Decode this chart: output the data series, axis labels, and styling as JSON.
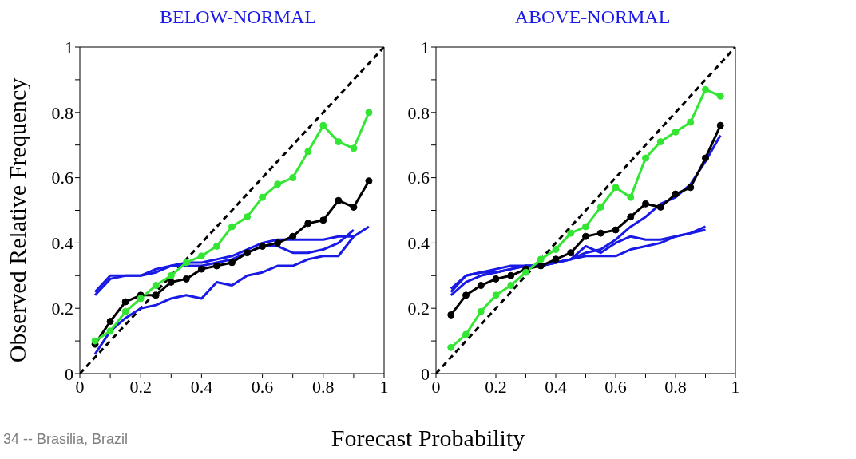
{
  "chart_data": [
    {
      "type": "line",
      "title": "BELOW-NORMAL",
      "ylabel": "Observed Relative Frequency",
      "annotations": [
        "34 -- Brasilia, Brazil"
      ],
      "xlim": [
        0,
        1
      ],
      "ylim": [
        0,
        1
      ],
      "xticks": [
        0,
        {
          "value": 0.1,
          "label": null
        },
        0.2,
        {
          "value": 0.3,
          "label": null
        },
        0.4,
        {
          "value": 0.5,
          "label": null
        },
        0.6,
        {
          "value": 0.7,
          "label": null
        },
        0.8,
        {
          "value": 0.9,
          "label": null
        },
        1
      ],
      "yticks": [
        0,
        {
          "value": 0.1,
          "label": null
        },
        0.2,
        {
          "value": 0.3,
          "label": null
        },
        0.4,
        {
          "value": 0.5,
          "label": null
        },
        0.6,
        {
          "value": 0.7,
          "label": null
        },
        0.8,
        {
          "value": 0.9,
          "label": null
        },
        1
      ],
      "grid": false,
      "series": [
        {
          "color": "#000000",
          "line_style": "dashed",
          "marker": "none",
          "x": [
            0,
            1
          ],
          "values": [
            0,
            1
          ]
        },
        {
          "color": "#1a1ae6",
          "marker": "none",
          "x": [
            0.05,
            0.1,
            0.15,
            0.2,
            0.25,
            0.3,
            0.35,
            0.4,
            0.45,
            0.5,
            0.55,
            0.6,
            0.65,
            0.7,
            0.75,
            0.8,
            0.85,
            0.9
          ],
          "values": [
            0.24,
            0.29,
            0.3,
            0.3,
            0.31,
            0.33,
            0.34,
            0.34,
            0.35,
            0.36,
            0.38,
            0.4,
            0.41,
            0.41,
            0.41,
            0.41,
            0.42,
            0.42
          ]
        },
        {
          "color": "#1a1ae6",
          "marker": "none",
          "x": [
            0.05,
            0.1,
            0.15,
            0.2,
            0.25,
            0.3,
            0.35,
            0.4,
            0.45,
            0.5,
            0.55,
            0.6,
            0.65,
            0.7,
            0.75,
            0.8,
            0.85,
            0.9
          ],
          "values": [
            0.25,
            0.3,
            0.3,
            0.3,
            0.32,
            0.33,
            0.33,
            0.33,
            0.34,
            0.35,
            0.37,
            0.39,
            0.39,
            0.37,
            0.37,
            0.38,
            0.4,
            0.44
          ]
        },
        {
          "color": "#1a1ae6",
          "marker": "none",
          "x": [
            0.05,
            0.1,
            0.15,
            0.2,
            0.25,
            0.3,
            0.35,
            0.4,
            0.45,
            0.5,
            0.55,
            0.6,
            0.65,
            0.7,
            0.75,
            0.8,
            0.85,
            0.9,
            0.95
          ],
          "values": [
            0.06,
            0.13,
            0.17,
            0.2,
            0.21,
            0.23,
            0.24,
            0.23,
            0.28,
            0.27,
            0.3,
            0.31,
            0.33,
            0.33,
            0.35,
            0.36,
            0.36,
            0.42,
            0.45
          ]
        },
        {
          "color": "#000000",
          "marker": "circle",
          "x": [
            0.05,
            0.1,
            0.15,
            0.2,
            0.25,
            0.3,
            0.35,
            0.4,
            0.45,
            0.5,
            0.55,
            0.6,
            0.65,
            0.7,
            0.75,
            0.8,
            0.85,
            0.9,
            0.95
          ],
          "values": [
            0.09,
            0.16,
            0.22,
            0.24,
            0.24,
            0.28,
            0.29,
            0.32,
            0.33,
            0.34,
            0.37,
            0.39,
            0.4,
            0.42,
            0.46,
            0.47,
            0.53,
            0.51,
            0.59
          ]
        },
        {
          "color": "#33e633",
          "marker": "circle",
          "x": [
            0.05,
            0.1,
            0.15,
            0.2,
            0.25,
            0.3,
            0.35,
            0.4,
            0.45,
            0.5,
            0.55,
            0.6,
            0.65,
            0.7,
            0.75,
            0.8,
            0.85,
            0.9,
            0.95
          ],
          "values": [
            0.1,
            0.13,
            0.19,
            0.23,
            0.27,
            0.3,
            0.34,
            0.36,
            0.39,
            0.45,
            0.48,
            0.54,
            0.58,
            0.6,
            0.68,
            0.76,
            0.71,
            0.69,
            0.8
          ]
        }
      ]
    },
    {
      "type": "line",
      "title": "ABOVE-NORMAL",
      "xlabel": "Forecast Probability",
      "xlim": [
        0,
        1
      ],
      "ylim": [
        0,
        1
      ],
      "xticks": [
        0,
        {
          "value": 0.1,
          "label": null
        },
        0.2,
        {
          "value": 0.3,
          "label": null
        },
        0.4,
        {
          "value": 0.5,
          "label": null
        },
        0.6,
        {
          "value": 0.7,
          "label": null
        },
        0.8,
        {
          "value": 0.9,
          "label": null
        },
        1
      ],
      "yticks": [
        0,
        {
          "value": 0.1,
          "label": null
        },
        0.2,
        {
          "value": 0.3,
          "label": null
        },
        0.4,
        {
          "value": 0.5,
          "label": null
        },
        0.6,
        {
          "value": 0.7,
          "label": null
        },
        0.8,
        {
          "value": 0.9,
          "label": null
        },
        1
      ],
      "grid": false,
      "series": [
        {
          "color": "#000000",
          "line_style": "dashed",
          "marker": "none",
          "x": [
            0,
            1
          ],
          "values": [
            0,
            1
          ]
        },
        {
          "color": "#1a1ae6",
          "marker": "none",
          "x": [
            0.05,
            0.1,
            0.15,
            0.2,
            0.25,
            0.3,
            0.35,
            0.4,
            0.45,
            0.5,
            0.55,
            0.6,
            0.65,
            0.7,
            0.75,
            0.8,
            0.85,
            0.9
          ],
          "values": [
            0.25,
            0.3,
            0.31,
            0.32,
            0.33,
            0.33,
            0.33,
            0.34,
            0.35,
            0.39,
            0.37,
            0.4,
            0.42,
            0.41,
            0.41,
            0.42,
            0.43,
            0.45
          ]
        },
        {
          "color": "#1a1ae6",
          "marker": "none",
          "x": [
            0.05,
            0.1,
            0.15,
            0.2,
            0.25,
            0.3,
            0.35,
            0.4,
            0.45,
            0.5,
            0.55,
            0.6,
            0.65,
            0.7,
            0.75,
            0.8,
            0.85,
            0.9
          ],
          "values": [
            0.26,
            0.3,
            0.31,
            0.31,
            0.32,
            0.33,
            0.33,
            0.34,
            0.35,
            0.36,
            0.36,
            0.36,
            0.38,
            0.39,
            0.4,
            0.42,
            0.43,
            0.44
          ]
        },
        {
          "color": "#1a1ae6",
          "marker": "none",
          "x": [
            0.05,
            0.1,
            0.15,
            0.2,
            0.25,
            0.3,
            0.35,
            0.4,
            0.45,
            0.5,
            0.55,
            0.6,
            0.65,
            0.7,
            0.75,
            0.8,
            0.85,
            0.9,
            0.95
          ],
          "values": [
            0.24,
            0.28,
            0.3,
            0.31,
            0.32,
            0.33,
            0.33,
            0.34,
            0.35,
            0.37,
            0.38,
            0.41,
            0.45,
            0.48,
            0.52,
            0.54,
            0.58,
            0.65,
            0.73
          ]
        },
        {
          "color": "#000000",
          "marker": "circle",
          "x": [
            0.05,
            0.1,
            0.15,
            0.2,
            0.25,
            0.3,
            0.35,
            0.4,
            0.45,
            0.5,
            0.55,
            0.6,
            0.65,
            0.7,
            0.75,
            0.8,
            0.85,
            0.9,
            0.95
          ],
          "values": [
            0.18,
            0.24,
            0.27,
            0.29,
            0.3,
            0.32,
            0.33,
            0.35,
            0.37,
            0.42,
            0.43,
            0.44,
            0.48,
            0.52,
            0.51,
            0.55,
            0.57,
            0.66,
            0.76
          ]
        },
        {
          "color": "#33e633",
          "marker": "circle",
          "x": [
            0.05,
            0.1,
            0.15,
            0.2,
            0.25,
            0.3,
            0.35,
            0.4,
            0.45,
            0.5,
            0.55,
            0.6,
            0.65,
            0.7,
            0.75,
            0.8,
            0.85,
            0.9,
            0.95
          ],
          "values": [
            0.08,
            0.12,
            0.19,
            0.24,
            0.27,
            0.31,
            0.35,
            0.38,
            0.43,
            0.45,
            0.51,
            0.57,
            0.54,
            0.66,
            0.71,
            0.74,
            0.77,
            0.87,
            0.85
          ]
        }
      ]
    }
  ]
}
